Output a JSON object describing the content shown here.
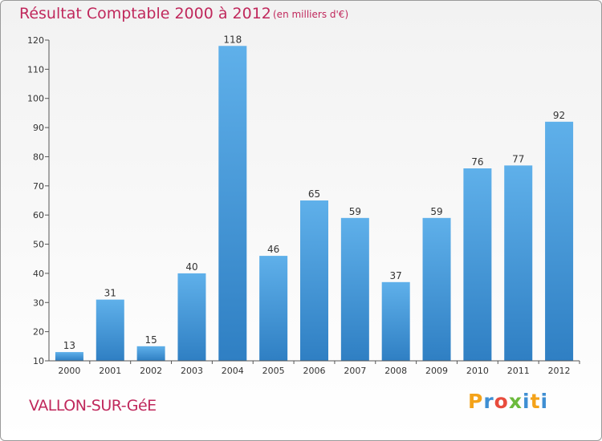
{
  "header": {
    "title": "Résultat Comptable 2000 à 2012",
    "subtitle": "(en milliers d'€)"
  },
  "footer": {
    "place": "VALLON-SUR-GéE",
    "logo_letters": [
      "P",
      "r",
      "o",
      "x",
      "i",
      "t",
      "i"
    ]
  },
  "colors": {
    "title": "#c0285c",
    "bar_light": "#5fb0ea",
    "bar_dark": "#2f7fc3",
    "axis": "#555555"
  },
  "chart_data": {
    "type": "bar",
    "title": "Résultat Comptable 2000 à 2012",
    "subtitle": "(en milliers d'€)",
    "categories": [
      "2000",
      "2001",
      "2002",
      "2003",
      "2004",
      "2005",
      "2006",
      "2007",
      "2008",
      "2009",
      "2010",
      "2011",
      "2012"
    ],
    "values": [
      13,
      31,
      15,
      40,
      118,
      46,
      65,
      59,
      37,
      59,
      76,
      77,
      92
    ],
    "ylim": [
      10,
      120
    ],
    "yticks": [
      10,
      20,
      30,
      40,
      50,
      60,
      70,
      80,
      90,
      100,
      110,
      120
    ],
    "xlabel": "",
    "ylabel": "",
    "grid": false,
    "legend": "none"
  }
}
